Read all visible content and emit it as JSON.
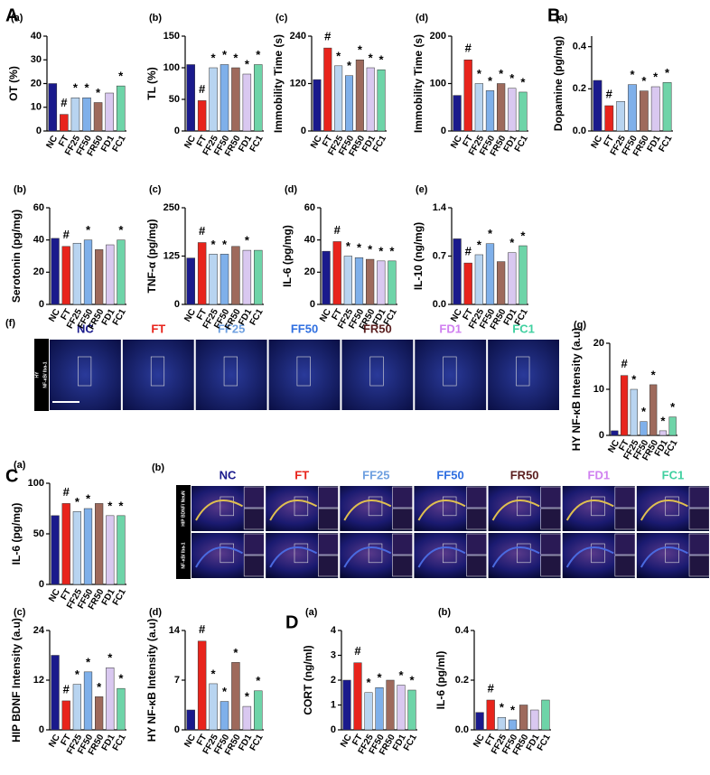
{
  "sections": [
    "A",
    "B",
    "C",
    "D"
  ],
  "image_panels": [
    {
      "panel": "(f)",
      "labels": [
        "NC",
        "FT",
        "FF25",
        "FF50",
        "FR50",
        "FD1",
        "FC1"
      ],
      "label_colors": [
        "#1a1a8c",
        "#e8241c",
        "#6fa0e0",
        "#2f6fe0",
        "#5a1e1e",
        "#d080f0",
        "#40d0a0"
      ],
      "side_labels": [
        "HY",
        "NF-κB/ Iba-1"
      ]
    },
    {
      "panel": "(b)",
      "labels": [
        "NC",
        "FT",
        "FF25",
        "FF50",
        "FR50",
        "FD1",
        "FC1"
      ],
      "label_colors": [
        "#1a1a8c",
        "#e8241c",
        "#6fa0e0",
        "#2f6fe0",
        "#5a1e1e",
        "#d080f0",
        "#40d0a0"
      ],
      "side_labels": [
        "HIP BDNF/ NeuN",
        "NF-κB/ Iba-1"
      ]
    }
  ],
  "chart_data": [
    {
      "type": "bar",
      "panel": "(a)",
      "ylabel": "OT (%)",
      "categories": [
        "NC",
        "FT",
        "FF25",
        "FF50",
        "FR50",
        "FD1",
        "FC1"
      ],
      "values": [
        20,
        7,
        14,
        14,
        12,
        16,
        19
      ],
      "markers": [
        null,
        "#",
        "*",
        "*",
        "*",
        null,
        "*"
      ],
      "colors": [
        "#1a1a8c",
        "#e8241c",
        "#b8d4f0",
        "#7fb0ea",
        "#9e6a5c",
        "#d9c8f0",
        "#6ed4a8"
      ],
      "ylim": [
        0,
        40
      ],
      "yticks": [
        0,
        10,
        20,
        30,
        40
      ]
    },
    {
      "type": "bar",
      "panel": "(b)",
      "ylabel": "TL (%)",
      "categories": [
        "NC",
        "FT",
        "FF25",
        "FF50",
        "FR50",
        "FD1",
        "FC1"
      ],
      "values": [
        105,
        48,
        100,
        105,
        100,
        90,
        105
      ],
      "markers": [
        null,
        "#",
        "*",
        "*",
        "*",
        "*",
        "*"
      ],
      "colors": [
        "#1a1a8c",
        "#e8241c",
        "#b8d4f0",
        "#7fb0ea",
        "#9e6a5c",
        "#d9c8f0",
        "#6ed4a8"
      ],
      "ylim": [
        0,
        150
      ],
      "yticks": [
        0,
        50,
        100,
        150
      ]
    },
    {
      "type": "bar",
      "panel": "(c)",
      "ylabel": "Immobility Time (s)",
      "categories": [
        "NC",
        "FT",
        "FF25",
        "FF50",
        "FR50",
        "FD1",
        "FC1"
      ],
      "values": [
        130,
        210,
        165,
        140,
        180,
        160,
        155
      ],
      "markers": [
        null,
        "#",
        "*",
        "*",
        "*",
        "*",
        "*"
      ],
      "colors": [
        "#1a1a8c",
        "#e8241c",
        "#b8d4f0",
        "#7fb0ea",
        "#9e6a5c",
        "#d9c8f0",
        "#6ed4a8"
      ],
      "ylim": [
        0,
        240
      ],
      "yticks": [
        0,
        120,
        240
      ]
    },
    {
      "type": "bar",
      "panel": "(d)",
      "ylabel": "Immobility Time (s)",
      "categories": [
        "NC",
        "FT",
        "FF25",
        "FF50",
        "FR50",
        "FD1",
        "FC1"
      ],
      "values": [
        75,
        150,
        100,
        85,
        100,
        90,
        82
      ],
      "markers": [
        null,
        "#",
        "*",
        "*",
        "*",
        "*",
        "*"
      ],
      "colors": [
        "#1a1a8c",
        "#e8241c",
        "#b8d4f0",
        "#7fb0ea",
        "#9e6a5c",
        "#d9c8f0",
        "#6ed4a8"
      ],
      "ylim": [
        0,
        200
      ],
      "yticks": [
        0,
        100,
        200
      ]
    },
    {
      "type": "bar",
      "panel": "(a)",
      "ylabel": "Dopamine (pg/mg)",
      "categories": [
        "NC",
        "FT",
        "FF25",
        "FF50",
        "FR50",
        "FD1",
        "FC1"
      ],
      "values": [
        0.24,
        0.12,
        0.14,
        0.22,
        0.19,
        0.21,
        0.23
      ],
      "markers": [
        null,
        "#",
        null,
        "*",
        "*",
        "*",
        "*"
      ],
      "colors": [
        "#1a1a8c",
        "#e8241c",
        "#b8d4f0",
        "#7fb0ea",
        "#9e6a5c",
        "#d9c8f0",
        "#6ed4a8"
      ],
      "ylim": [
        0,
        0.45
      ],
      "yticks": [
        {
          "value": 0,
          "label": "0.0"
        },
        0.2,
        0.4
      ]
    },
    {
      "type": "bar",
      "panel": "(b)",
      "ylabel": "Serotonin (pg/mg)",
      "categories": [
        "NC",
        "FT",
        "FF25",
        "FF50",
        "FR50",
        "FD1",
        "FC1"
      ],
      "values": [
        41,
        36,
        38,
        40,
        34,
        37,
        40
      ],
      "markers": [
        null,
        "#",
        null,
        "*",
        null,
        null,
        "*"
      ],
      "colors": [
        "#1a1a8c",
        "#e8241c",
        "#b8d4f0",
        "#7fb0ea",
        "#9e6a5c",
        "#d9c8f0",
        "#6ed4a8"
      ],
      "ylim": [
        0,
        60
      ],
      "yticks": [
        0,
        20,
        40,
        60
      ]
    },
    {
      "type": "bar",
      "panel": "(c)",
      "ylabel": "TNF-α (pg/mg)",
      "categories": [
        "NC",
        "FT",
        "FF25",
        "FF50",
        "FR50",
        "FD1",
        "FC1"
      ],
      "values": [
        120,
        160,
        130,
        130,
        150,
        140,
        140
      ],
      "markers": [
        null,
        "#",
        "*",
        "*",
        null,
        "*",
        null
      ],
      "colors": [
        "#1a1a8c",
        "#e8241c",
        "#b8d4f0",
        "#7fb0ea",
        "#9e6a5c",
        "#d9c8f0",
        "#6ed4a8"
      ],
      "ylim": [
        0,
        250
      ],
      "yticks": [
        0,
        125,
        250
      ]
    },
    {
      "type": "bar",
      "panel": "(d)",
      "ylabel": "IL-6 (pg/mg)",
      "categories": [
        "NC",
        "FT",
        "FF25",
        "FF50",
        "FR50",
        "FD1",
        "FC1"
      ],
      "values": [
        33,
        39,
        30,
        29,
        28,
        27,
        27
      ],
      "markers": [
        null,
        "#",
        "*",
        "*",
        "*",
        "*",
        "*"
      ],
      "colors": [
        "#1a1a8c",
        "#e8241c",
        "#b8d4f0",
        "#7fb0ea",
        "#9e6a5c",
        "#d9c8f0",
        "#6ed4a8"
      ],
      "ylim": [
        0,
        60
      ],
      "yticks": [
        0,
        20,
        40,
        60
      ]
    },
    {
      "type": "bar",
      "panel": "(e)",
      "ylabel": "IL-10 (ng/mg)",
      "categories": [
        "NC",
        "FT",
        "FF25",
        "FF50",
        "FR50",
        "FD1",
        "FC1"
      ],
      "values": [
        0.95,
        0.6,
        0.72,
        0.88,
        0.62,
        0.75,
        0.85
      ],
      "markers": [
        null,
        "#",
        "*",
        "*",
        null,
        "*",
        "*"
      ],
      "colors": [
        "#1a1a8c",
        "#e8241c",
        "#b8d4f0",
        "#7fb0ea",
        "#9e6a5c",
        "#d9c8f0",
        "#6ed4a8"
      ],
      "ylim": [
        0,
        1.4
      ],
      "yticks": [
        {
          "value": 0,
          "label": "0.0"
        },
        0.7,
        1.4
      ]
    },
    {
      "type": "bar",
      "panel": "(g)",
      "ylabel": "HY NF-κB Intensity (a.u)",
      "categories": [
        "NC",
        "FT",
        "FF25",
        "FF50",
        "FR50",
        "FD1",
        "FC1"
      ],
      "values": [
        1,
        13,
        10,
        3,
        11,
        1,
        4
      ],
      "markers": [
        null,
        "#",
        "*",
        "*",
        "*",
        "*",
        "*"
      ],
      "colors": [
        "#1a1a8c",
        "#e8241c",
        "#b8d4f0",
        "#7fb0ea",
        "#9e6a5c",
        "#d9c8f0",
        "#6ed4a8"
      ],
      "ylim": [
        0,
        20
      ],
      "yticks": [
        0,
        10,
        20
      ]
    },
    {
      "type": "bar",
      "panel": "(a)",
      "ylabel": "IL-6 (pg/mg)",
      "categories": [
        "NC",
        "FT",
        "FF25",
        "FF50",
        "FR50",
        "FD1",
        "FC1"
      ],
      "values": [
        68,
        80,
        72,
        75,
        80,
        68,
        68
      ],
      "markers": [
        null,
        "#",
        "*",
        "*",
        null,
        "*",
        "*"
      ],
      "colors": [
        "#1a1a8c",
        "#e8241c",
        "#b8d4f0",
        "#7fb0ea",
        "#9e6a5c",
        "#d9c8f0",
        "#6ed4a8"
      ],
      "ylim": [
        0,
        100
      ],
      "yticks": [
        0,
        50,
        100
      ]
    },
    {
      "type": "bar",
      "panel": "(c)",
      "ylabel": "HIP BDNF Intensity (a.u)",
      "categories": [
        "NC",
        "FT",
        "FF25",
        "FF50",
        "FR50",
        "FD1",
        "FC1"
      ],
      "values": [
        18,
        7,
        11,
        14,
        8,
        15,
        10
      ],
      "markers": [
        null,
        "#",
        "*",
        "*",
        "*",
        "*",
        "*"
      ],
      "colors": [
        "#1a1a8c",
        "#e8241c",
        "#b8d4f0",
        "#7fb0ea",
        "#9e6a5c",
        "#d9c8f0",
        "#6ed4a8"
      ],
      "ylim": [
        0,
        24
      ],
      "yticks": [
        0,
        12,
        24
      ]
    },
    {
      "type": "bar",
      "panel": "(d)",
      "ylabel": "HY NF-κB Intensity (a.u)",
      "categories": [
        "NC",
        "FT",
        "FF25",
        "FF50",
        "FR50",
        "FD1",
        "FC1"
      ],
      "values": [
        2.8,
        12.5,
        6.5,
        4,
        9.5,
        3.3,
        5.5
      ],
      "markers": [
        null,
        "#",
        "*",
        "*",
        "*",
        "*",
        "*"
      ],
      "colors": [
        "#1a1a8c",
        "#e8241c",
        "#b8d4f0",
        "#7fb0ea",
        "#9e6a5c",
        "#d9c8f0",
        "#6ed4a8"
      ],
      "ylim": [
        0,
        14
      ],
      "yticks": [
        0,
        7,
        14
      ]
    },
    {
      "type": "bar",
      "panel": "(a)",
      "ylabel": "CORT (ng/ml)",
      "categories": [
        "NC",
        "FT",
        "FF25",
        "FF50",
        "FR50",
        "FD1",
        "FC1"
      ],
      "values": [
        2.0,
        2.7,
        1.5,
        1.7,
        2.0,
        1.8,
        1.6
      ],
      "markers": [
        null,
        "#",
        "*",
        "*",
        null,
        "*",
        "*"
      ],
      "colors": [
        "#1a1a8c",
        "#e8241c",
        "#b8d4f0",
        "#7fb0ea",
        "#9e6a5c",
        "#d9c8f0",
        "#6ed4a8"
      ],
      "ylim": [
        0,
        4
      ],
      "yticks": [
        0,
        1,
        2,
        3,
        4
      ]
    },
    {
      "type": "bar",
      "panel": "(b)",
      "ylabel": "IL-6 (pg/ml)",
      "categories": [
        "NC",
        "FT",
        "FF25",
        "FF50",
        "FR50",
        "FD1",
        "FC1"
      ],
      "values": [
        0.07,
        0.12,
        0.05,
        0.04,
        0.1,
        0.08,
        0.12
      ],
      "markers": [
        null,
        "#",
        "*",
        "*",
        null,
        null,
        null
      ],
      "colors": [
        "#1a1a8c",
        "#e8241c",
        "#b8d4f0",
        "#7fb0ea",
        "#9e6a5c",
        "#d9c8f0",
        "#6ed4a8"
      ],
      "ylim": [
        0,
        0.4
      ],
      "yticks": [
        {
          "value": 0,
          "label": "0.0"
        },
        0.2,
        0.4
      ]
    }
  ]
}
